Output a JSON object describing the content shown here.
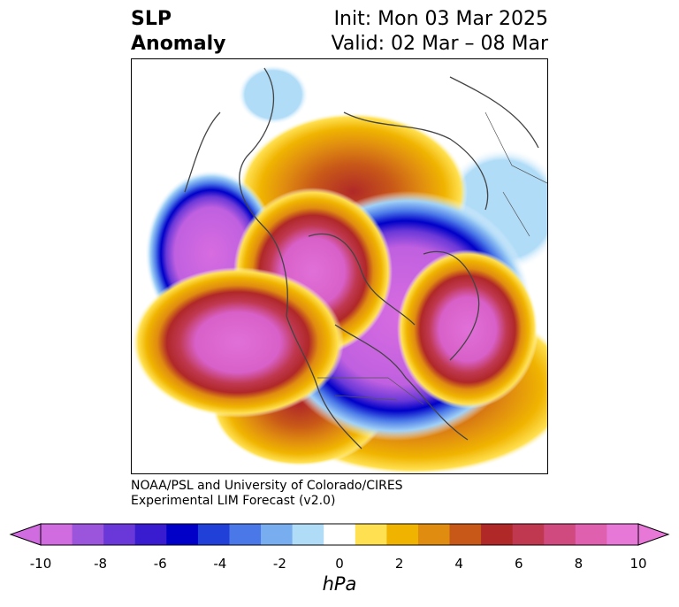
{
  "header": {
    "left_line1": "SLP",
    "left_line2": "Anomaly",
    "right_line1": "Init: Mon 03 Mar 2025",
    "right_line2": "Valid: 02 Mar – 08 Mar"
  },
  "credit": {
    "line1": "NOAA/PSL and University of Colorado/CIRES",
    "line2": "Experimental LIM Forecast (v2.0)"
  },
  "colorbar": {
    "unit": "hPa",
    "tick_labels": [
      "-10",
      "-8",
      "-6",
      "-4",
      "-2",
      "0",
      "2",
      "4",
      "6",
      "8",
      "10"
    ],
    "colors": [
      "#d06be0",
      "#9b55dc",
      "#6a38d8",
      "#3a1cd0",
      "#0000c8",
      "#2040d8",
      "#4a78e8",
      "#78aef0",
      "#b0dcf8",
      "#ffffff",
      "#ffe050",
      "#f0b400",
      "#e08c10",
      "#c85818",
      "#b02828",
      "#c03850",
      "#d04a80",
      "#e060b0",
      "#e878d8"
    ]
  },
  "map": {
    "projection": "north-polar-stereographic",
    "field": "sea-level-pressure-anomaly"
  }
}
